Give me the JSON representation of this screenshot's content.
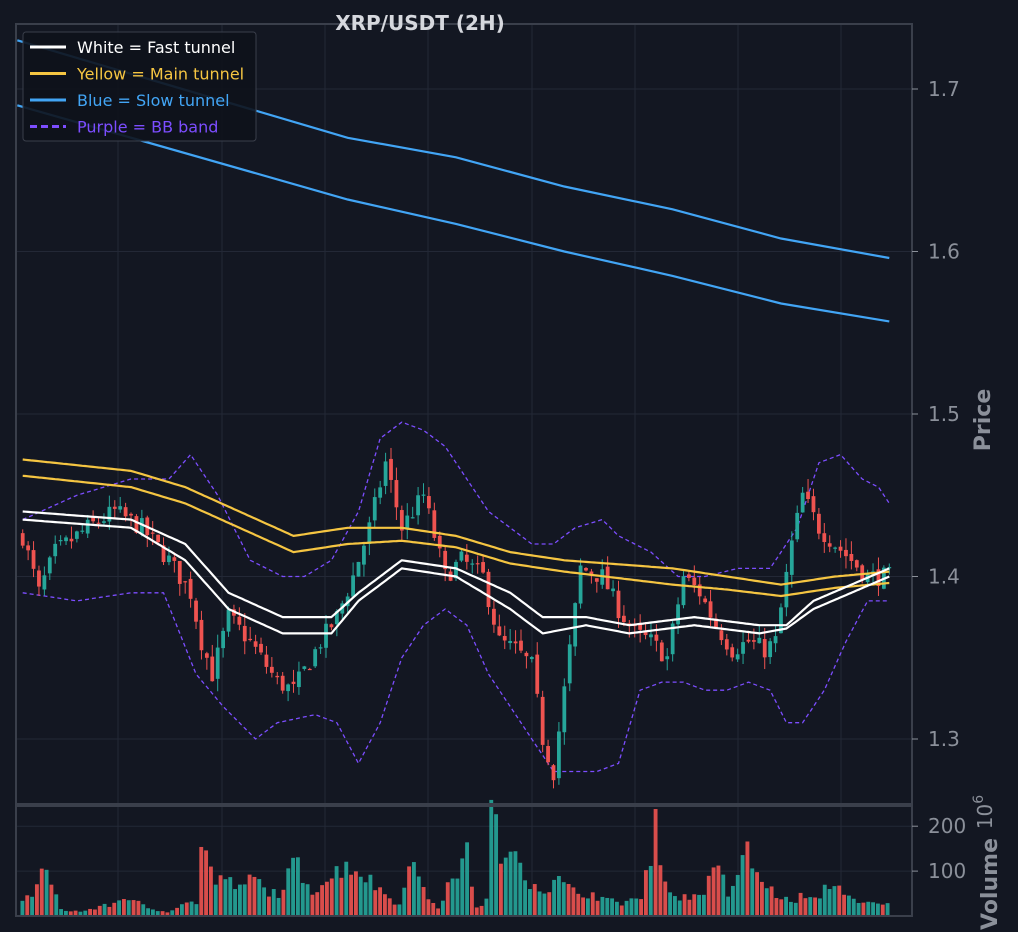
{
  "chart_data": {
    "type": "candlestick",
    "title": "XRP/USDT (2H)",
    "ylabel": "Price",
    "volume_label": "Volume",
    "volume_exponent_base": "10",
    "volume_exponent": "6",
    "ylim": [
      1.26,
      1.74
    ],
    "volume_ylim": [
      0,
      245
    ],
    "yticks": [
      1.3,
      1.4,
      1.5,
      1.6,
      1.7
    ],
    "volume_yticks": [
      100,
      200
    ],
    "grid": true,
    "legend_position": "top-left",
    "colors": {
      "background": "#131722",
      "up": "#26a69a",
      "down": "#ef5350",
      "fast": "#ffffff",
      "main": "#f5c542",
      "slow": "#42a5f5",
      "bb": "#7c4dff"
    },
    "legend": [
      {
        "label": "White = Fast tunnel",
        "color": "#ffffff",
        "dashed": false
      },
      {
        "label": "Yellow = Main tunnel",
        "color": "#f5c542",
        "dashed": false
      },
      {
        "label": "Blue = Slow tunnel",
        "color": "#42a5f5",
        "dashed": false
      },
      {
        "label": "Purple = BB band",
        "color": "#7c4dff",
        "dashed": true
      }
    ],
    "close_anchors": [
      [
        0,
        1.425
      ],
      [
        3,
        1.39
      ],
      [
        6,
        1.415
      ],
      [
        12,
        1.43
      ],
      [
        17,
        1.44
      ],
      [
        22,
        1.43
      ],
      [
        27,
        1.41
      ],
      [
        31,
        1.39
      ],
      [
        33,
        1.36
      ],
      [
        35,
        1.34
      ],
      [
        38,
        1.375
      ],
      [
        42,
        1.36
      ],
      [
        47,
        1.335
      ],
      [
        50,
        1.33
      ],
      [
        55,
        1.36
      ],
      [
        58,
        1.375
      ],
      [
        61,
        1.4
      ],
      [
        64,
        1.43
      ],
      [
        67,
        1.47
      ],
      [
        70,
        1.43
      ],
      [
        74,
        1.45
      ],
      [
        78,
        1.4
      ],
      [
        81,
        1.41
      ],
      [
        85,
        1.4
      ],
      [
        88,
        1.36
      ],
      [
        91,
        1.355
      ],
      [
        94,
        1.345
      ],
      [
        96,
        1.3
      ],
      [
        98,
        1.28
      ],
      [
        100,
        1.33
      ],
      [
        103,
        1.405
      ],
      [
        107,
        1.4
      ],
      [
        110,
        1.38
      ],
      [
        113,
        1.365
      ],
      [
        116,
        1.36
      ],
      [
        119,
        1.35
      ],
      [
        122,
        1.4
      ],
      [
        125,
        1.39
      ],
      [
        128,
        1.37
      ],
      [
        131,
        1.355
      ],
      [
        134,
        1.36
      ],
      [
        137,
        1.355
      ],
      [
        139,
        1.36
      ],
      [
        142,
        1.42
      ],
      [
        144,
        1.45
      ],
      [
        147,
        1.43
      ],
      [
        150,
        1.42
      ],
      [
        153,
        1.41
      ],
      [
        156,
        1.4
      ],
      [
        160,
        1.4
      ]
    ],
    "fast_upper": [
      [
        0,
        1.44
      ],
      [
        20,
        1.435
      ],
      [
        30,
        1.42
      ],
      [
        38,
        1.39
      ],
      [
        48,
        1.375
      ],
      [
        57,
        1.375
      ],
      [
        62,
        1.39
      ],
      [
        70,
        1.41
      ],
      [
        80,
        1.405
      ],
      [
        90,
        1.39
      ],
      [
        96,
        1.375
      ],
      [
        104,
        1.375
      ],
      [
        112,
        1.37
      ],
      [
        124,
        1.375
      ],
      [
        136,
        1.37
      ],
      [
        141,
        1.37
      ],
      [
        146,
        1.385
      ],
      [
        153,
        1.395
      ],
      [
        160,
        1.405
      ]
    ],
    "fast_lower": [
      [
        0,
        1.435
      ],
      [
        20,
        1.43
      ],
      [
        30,
        1.41
      ],
      [
        38,
        1.38
      ],
      [
        48,
        1.365
      ],
      [
        57,
        1.365
      ],
      [
        62,
        1.385
      ],
      [
        70,
        1.405
      ],
      [
        80,
        1.4
      ],
      [
        90,
        1.38
      ],
      [
        96,
        1.365
      ],
      [
        104,
        1.37
      ],
      [
        112,
        1.365
      ],
      [
        124,
        1.37
      ],
      [
        136,
        1.365
      ],
      [
        141,
        1.368
      ],
      [
        146,
        1.38
      ],
      [
        153,
        1.39
      ],
      [
        160,
        1.4
      ]
    ],
    "main_upper": [
      [
        0,
        1.472
      ],
      [
        20,
        1.465
      ],
      [
        30,
        1.455
      ],
      [
        40,
        1.44
      ],
      [
        50,
        1.425
      ],
      [
        60,
        1.43
      ],
      [
        70,
        1.43
      ],
      [
        80,
        1.425
      ],
      [
        90,
        1.415
      ],
      [
        100,
        1.41
      ],
      [
        120,
        1.405
      ],
      [
        130,
        1.4
      ],
      [
        140,
        1.395
      ],
      [
        150,
        1.4
      ],
      [
        160,
        1.403
      ]
    ],
    "main_lower": [
      [
        0,
        1.462
      ],
      [
        20,
        1.455
      ],
      [
        30,
        1.445
      ],
      [
        40,
        1.43
      ],
      [
        50,
        1.415
      ],
      [
        60,
        1.42
      ],
      [
        70,
        1.422
      ],
      [
        80,
        1.418
      ],
      [
        90,
        1.408
      ],
      [
        100,
        1.403
      ],
      [
        120,
        1.395
      ],
      [
        130,
        1.392
      ],
      [
        140,
        1.388
      ],
      [
        150,
        1.393
      ],
      [
        160,
        1.396
      ]
    ],
    "slow_upper": [
      [
        -1,
        1.73
      ],
      [
        60,
        1.67
      ],
      [
        80,
        1.658
      ],
      [
        100,
        1.64
      ],
      [
        120,
        1.626
      ],
      [
        140,
        1.608
      ],
      [
        160,
        1.596
      ]
    ],
    "slow_lower": [
      [
        -1,
        1.69
      ],
      [
        60,
        1.632
      ],
      [
        80,
        1.617
      ],
      [
        100,
        1.6
      ],
      [
        120,
        1.585
      ],
      [
        140,
        1.568
      ],
      [
        160,
        1.557
      ]
    ],
    "bb_upper": [
      [
        0,
        1.435
      ],
      [
        10,
        1.45
      ],
      [
        20,
        1.46
      ],
      [
        27,
        1.46
      ],
      [
        31,
        1.475
      ],
      [
        36,
        1.45
      ],
      [
        42,
        1.41
      ],
      [
        48,
        1.4
      ],
      [
        52,
        1.4
      ],
      [
        57,
        1.41
      ],
      [
        62,
        1.44
      ],
      [
        66,
        1.485
      ],
      [
        70,
        1.495
      ],
      [
        74,
        1.49
      ],
      [
        78,
        1.48
      ],
      [
        82,
        1.46
      ],
      [
        86,
        1.44
      ],
      [
        90,
        1.43
      ],
      [
        94,
        1.42
      ],
      [
        98,
        1.42
      ],
      [
        102,
        1.43
      ],
      [
        107,
        1.435
      ],
      [
        110,
        1.425
      ],
      [
        116,
        1.415
      ],
      [
        121,
        1.4
      ],
      [
        126,
        1.4
      ],
      [
        132,
        1.405
      ],
      [
        138,
        1.405
      ],
      [
        143,
        1.43
      ],
      [
        147,
        1.47
      ],
      [
        151,
        1.475
      ],
      [
        155,
        1.46
      ],
      [
        158,
        1.455
      ],
      [
        160,
        1.445
      ]
    ],
    "bb_lower": [
      [
        0,
        1.39
      ],
      [
        10,
        1.385
      ],
      [
        20,
        1.39
      ],
      [
        26,
        1.39
      ],
      [
        32,
        1.34
      ],
      [
        37,
        1.32
      ],
      [
        43,
        1.3
      ],
      [
        47,
        1.31
      ],
      [
        54,
        1.315
      ],
      [
        58,
        1.31
      ],
      [
        62,
        1.285
      ],
      [
        66,
        1.31
      ],
      [
        70,
        1.35
      ],
      [
        74,
        1.37
      ],
      [
        78,
        1.38
      ],
      [
        82,
        1.37
      ],
      [
        86,
        1.34
      ],
      [
        90,
        1.32
      ],
      [
        94,
        1.3
      ],
      [
        98,
        1.28
      ],
      [
        102,
        1.28
      ],
      [
        106,
        1.28
      ],
      [
        110,
        1.285
      ],
      [
        114,
        1.33
      ],
      [
        118,
        1.335
      ],
      [
        122,
        1.335
      ],
      [
        126,
        1.33
      ],
      [
        130,
        1.33
      ],
      [
        134,
        1.335
      ],
      [
        138,
        1.33
      ],
      [
        141,
        1.31
      ],
      [
        144,
        1.31
      ],
      [
        148,
        1.33
      ],
      [
        152,
        1.36
      ],
      [
        156,
        1.385
      ],
      [
        160,
        1.385
      ]
    ],
    "volume_anchors": [
      [
        0,
        30
      ],
      [
        3,
        65
      ],
      [
        4,
        120
      ],
      [
        8,
        15
      ],
      [
        12,
        10
      ],
      [
        18,
        25
      ],
      [
        22,
        45
      ],
      [
        26,
        15
      ],
      [
        30,
        10
      ],
      [
        34,
        35
      ],
      [
        36,
        25
      ],
      [
        37,
        185
      ],
      [
        40,
        70
      ],
      [
        42,
        90
      ],
      [
        45,
        60
      ],
      [
        48,
        90
      ],
      [
        50,
        60
      ],
      [
        54,
        50
      ],
      [
        56,
        130
      ],
      [
        60,
        60
      ],
      [
        64,
        90
      ],
      [
        67,
        120
      ],
      [
        70,
        100
      ],
      [
        74,
        60
      ],
      [
        78,
        25
      ],
      [
        80,
        140
      ],
      [
        83,
        55
      ],
      [
        86,
        20
      ],
      [
        89,
        85
      ],
      [
        92,
        140
      ],
      [
        94,
        20
      ],
      [
        96,
        35
      ],
      [
        97,
        245
      ],
      [
        100,
        110
      ],
      [
        102,
        155
      ],
      [
        105,
        80
      ],
      [
        108,
        60
      ],
      [
        111,
        80
      ],
      [
        114,
        55
      ],
      [
        118,
        50
      ],
      [
        121,
        35
      ],
      [
        124,
        30
      ],
      [
        126,
        40
      ],
      [
        128,
        35
      ],
      [
        131,
        200
      ],
      [
        134,
        50
      ],
      [
        138,
        40
      ],
      [
        141,
        60
      ],
      [
        144,
        110
      ],
      [
        146,
        50
      ],
      [
        150,
        145
      ],
      [
        153,
        75
      ],
      [
        156,
        50
      ],
      [
        159,
        30
      ],
      [
        161,
        45
      ],
      [
        164,
        35
      ],
      [
        167,
        75
      ],
      [
        170,
        60
      ],
      [
        173,
        25
      ],
      [
        175,
        30
      ],
      [
        178,
        25
      ]
    ]
  }
}
